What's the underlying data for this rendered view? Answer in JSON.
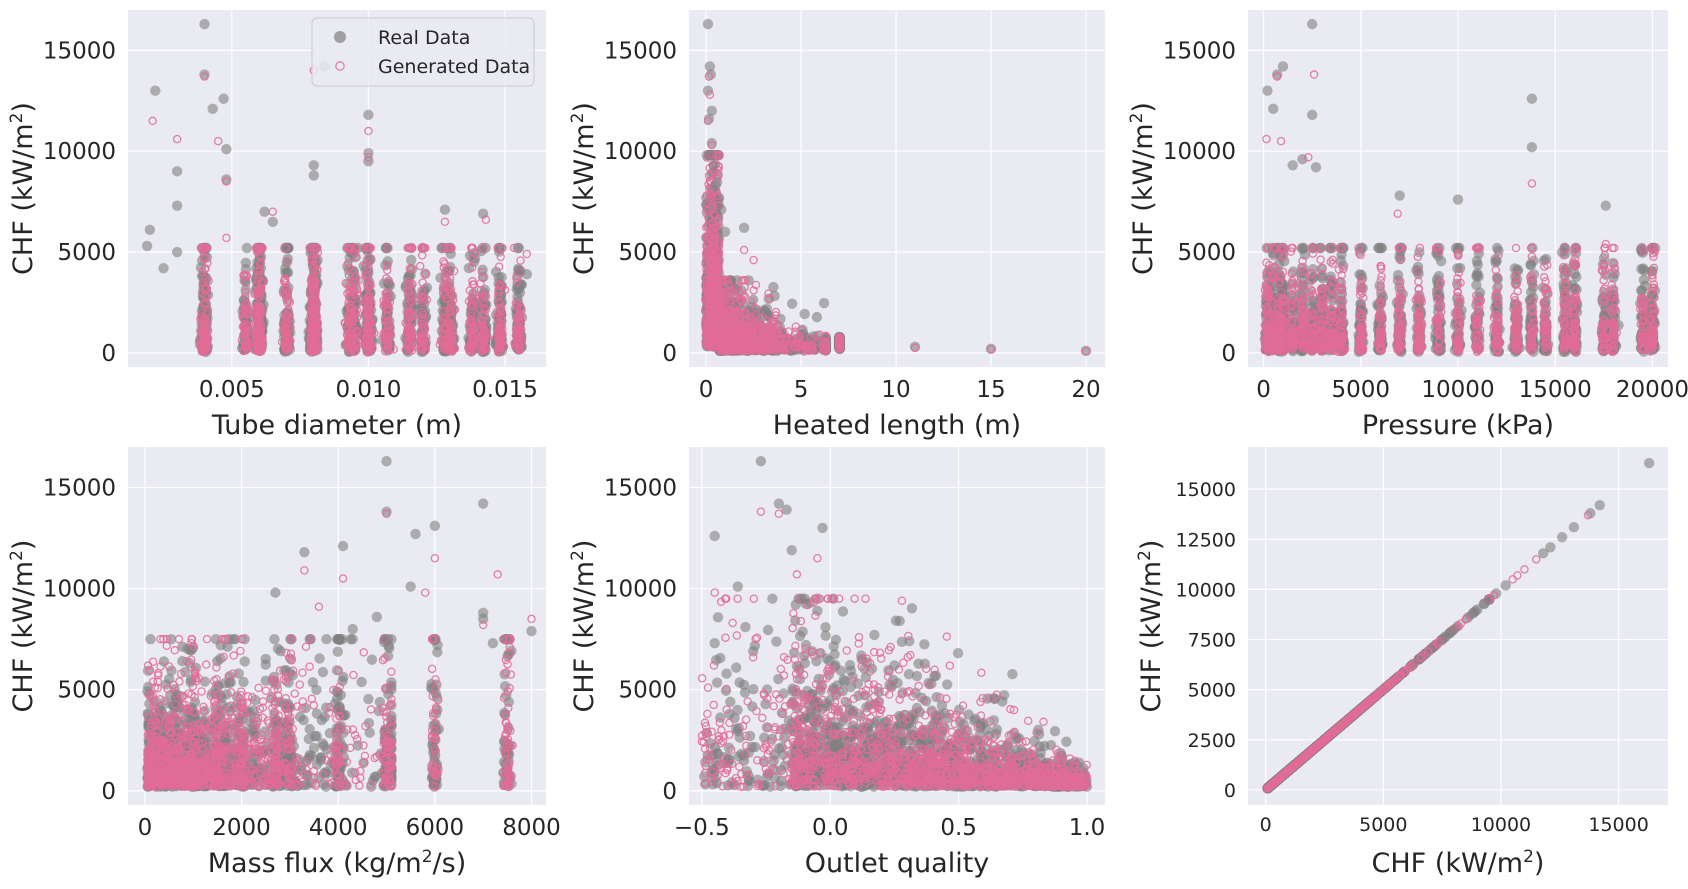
{
  "figure": {
    "style": "seaborn-darkgrid",
    "background": "#ffffff",
    "plot_background": "#eaeaf2",
    "grid_color": "#ffffff"
  },
  "legend": {
    "placement": "upper-right of first panel",
    "entries": [
      {
        "label": "Real Data",
        "marker": "filled-circle",
        "color": "#808080"
      },
      {
        "label": "Generated Data",
        "marker": "hollow-circle",
        "color": "#e87fa3"
      }
    ]
  },
  "colors": {
    "real": "#808080",
    "generated": "#e06c96"
  },
  "chart_data": [
    {
      "type": "scatter",
      "xlabel_parts": [
        {
          "t": "Tube diameter (m)"
        }
      ],
      "ylabel_parts": [
        {
          "t": "CHF (kW/m"
        },
        {
          "t": "2",
          "sup": true
        },
        {
          "t": ")"
        }
      ],
      "xlim": [
        0.0012,
        0.0165
      ],
      "ylim": [
        -700,
        17000
      ],
      "xticks": [
        0.005,
        0.01,
        0.015
      ],
      "xtick_labels": [
        "0.005",
        "0.010",
        "0.015"
      ],
      "yticks": [
        0,
        5000,
        10000,
        15000
      ],
      "ytick_labels": [
        "0",
        "5000",
        "10000",
        "15000"
      ],
      "legend": true,
      "generator": "diameter",
      "real_points": [
        [
          0.0019,
          5300
        ],
        [
          0.002,
          6100
        ],
        [
          0.0022,
          13000
        ],
        [
          0.0025,
          4200
        ],
        [
          0.003,
          7300
        ],
        [
          0.003,
          9000
        ],
        [
          0.003,
          5000
        ],
        [
          0.004,
          16300
        ],
        [
          0.004,
          13800
        ],
        [
          0.0043,
          12100
        ],
        [
          0.0047,
          12600
        ],
        [
          0.0048,
          10100
        ],
        [
          0.0048,
          8600
        ],
        [
          0.0062,
          7000
        ],
        [
          0.0065,
          6500
        ],
        [
          0.008,
          9300
        ],
        [
          0.008,
          8800
        ],
        [
          0.0084,
          14200
        ],
        [
          0.01,
          11800
        ],
        [
          0.01,
          9900
        ],
        [
          0.01,
          9500
        ],
        [
          0.0128,
          7100
        ],
        [
          0.0142,
          6900
        ],
        [
          0.0155,
          4100
        ],
        [
          0.0158,
          3900
        ]
      ],
      "gen_points": [
        [
          0.0021,
          11500
        ],
        [
          0.003,
          10600
        ],
        [
          0.004,
          13700
        ],
        [
          0.0045,
          10500
        ],
        [
          0.0048,
          8500
        ],
        [
          0.0048,
          5700
        ],
        [
          0.0065,
          7000
        ],
        [
          0.008,
          14000
        ],
        [
          0.01,
          11000
        ],
        [
          0.01,
          9700
        ],
        [
          0.0128,
          6500
        ],
        [
          0.0143,
          6600
        ],
        [
          0.0158,
          4900
        ]
      ]
    },
    {
      "type": "scatter",
      "xlabel_parts": [
        {
          "t": "Heated length (m)"
        }
      ],
      "ylabel_parts": [
        {
          "t": "CHF (kW/m"
        },
        {
          "t": "2",
          "sup": true
        },
        {
          "t": ")"
        }
      ],
      "xlim": [
        -0.9,
        21
      ],
      "ylim": [
        -700,
        17000
      ],
      "xticks": [
        0,
        5,
        10,
        15,
        20
      ],
      "xtick_labels": [
        "0",
        "5",
        "10",
        "15",
        "20"
      ],
      "yticks": [
        0,
        5000,
        10000,
        15000
      ],
      "ytick_labels": [
        "0",
        "5000",
        "10000",
        "15000"
      ],
      "generator": "length",
      "real_points": [
        [
          0.1,
          16300
        ],
        [
          0.2,
          14200
        ],
        [
          0.25,
          13800
        ],
        [
          0.1,
          13000
        ],
        [
          0.3,
          12000
        ],
        [
          0.15,
          11600
        ],
        [
          0.3,
          10400
        ],
        [
          0.2,
          9800
        ],
        [
          0.4,
          9300
        ],
        [
          2,
          6200
        ],
        [
          0.5,
          8300
        ],
        [
          0.8,
          7100
        ],
        [
          1,
          6000
        ],
        [
          11,
          300
        ],
        [
          15,
          200
        ],
        [
          20,
          100
        ]
      ],
      "gen_points": [
        [
          0.15,
          13700
        ],
        [
          0.2,
          12800
        ],
        [
          0.1,
          11500
        ],
        [
          0.3,
          10300
        ],
        [
          2,
          5100
        ],
        [
          2.5,
          4600
        ],
        [
          11,
          250
        ],
        [
          15,
          180
        ],
        [
          20,
          80
        ]
      ]
    },
    {
      "type": "scatter",
      "xlabel_parts": [
        {
          "t": "Pressure (kPa)"
        }
      ],
      "ylabel_parts": [
        {
          "t": "CHF (kW/m"
        },
        {
          "t": "2",
          "sup": true
        },
        {
          "t": ")"
        }
      ],
      "xlim": [
        -800,
        20800
      ],
      "ylim": [
        -700,
        17000
      ],
      "xticks": [
        0,
        5000,
        10000,
        15000,
        20000
      ],
      "xtick_labels": [
        "0",
        "5000",
        "10000",
        "15000",
        "20000"
      ],
      "yticks": [
        0,
        5000,
        10000,
        15000
      ],
      "ytick_labels": [
        "0",
        "5000",
        "10000",
        "15000"
      ],
      "generator": "pressure",
      "real_points": [
        [
          2500,
          16300
        ],
        [
          1000,
          14200
        ],
        [
          700,
          13800
        ],
        [
          200,
          13000
        ],
        [
          500,
          12100
        ],
        [
          2500,
          11800
        ],
        [
          13800,
          12600
        ],
        [
          2000,
          9600
        ],
        [
          1500,
          9300
        ],
        [
          13800,
          10200
        ],
        [
          17600,
          7300
        ],
        [
          7000,
          7800
        ],
        [
          10000,
          7600
        ],
        [
          2700,
          9200
        ]
      ],
      "gen_points": [
        [
          2600,
          13800
        ],
        [
          700,
          13700
        ],
        [
          150,
          10600
        ],
        [
          900,
          10500
        ],
        [
          13800,
          8400
        ],
        [
          2300,
          9700
        ],
        [
          6900,
          6900
        ],
        [
          17600,
          5400
        ]
      ]
    },
    {
      "type": "scatter",
      "xlabel_parts": [
        {
          "t": "Mass flux (kg/m"
        },
        {
          "t": "2",
          "sup": true
        },
        {
          "t": "/s)"
        }
      ],
      "ylabel_parts": [
        {
          "t": "CHF (kW/m"
        },
        {
          "t": "2",
          "sup": true
        },
        {
          "t": ")"
        }
      ],
      "xlim": [
        -350,
        8300
      ],
      "ylim": [
        -700,
        17000
      ],
      "xticks": [
        0,
        2000,
        4000,
        6000,
        8000
      ],
      "xtick_labels": [
        "0",
        "2000",
        "4000",
        "6000",
        "8000"
      ],
      "yticks": [
        0,
        5000,
        10000,
        15000
      ],
      "ytick_labels": [
        "0",
        "5000",
        "10000",
        "15000"
      ],
      "generator": "massflux",
      "real_points": [
        [
          5000,
          16300
        ],
        [
          7000,
          14200
        ],
        [
          5000,
          13800
        ],
        [
          6000,
          13100
        ],
        [
          5600,
          12700
        ],
        [
          4100,
          12100
        ],
        [
          3300,
          11800
        ],
        [
          5500,
          10100
        ],
        [
          2700,
          9800
        ],
        [
          7000,
          8800
        ],
        [
          7000,
          8500
        ],
        [
          8000,
          7900
        ],
        [
          7200,
          7300
        ],
        [
          4300,
          8000
        ],
        [
          4800,
          8600
        ]
      ],
      "gen_points": [
        [
          5000,
          13700
        ],
        [
          6000,
          11500
        ],
        [
          3300,
          10900
        ],
        [
          7300,
          10700
        ],
        [
          4100,
          10500
        ],
        [
          5800,
          9800
        ],
        [
          8000,
          8500
        ],
        [
          7000,
          8200
        ],
        [
          3600,
          9100
        ]
      ]
    },
    {
      "type": "scatter",
      "xlabel_parts": [
        {
          "t": "Outlet quality"
        }
      ],
      "ylabel_parts": [
        {
          "t": "CHF (kW/m"
        },
        {
          "t": "2",
          "sup": true
        },
        {
          "t": ")"
        }
      ],
      "xlim": [
        -0.55,
        1.07
      ],
      "ylim": [
        -700,
        17000
      ],
      "xticks": [
        -0.5,
        0.0,
        0.5,
        1.0
      ],
      "xtick_labels": [
        "−0.5",
        "0.0",
        "0.5",
        "1.0"
      ],
      "yticks": [
        0,
        5000,
        10000,
        15000
      ],
      "ytick_labels": [
        "0",
        "5000",
        "10000",
        "15000"
      ],
      "generator": "quality",
      "real_points": [
        [
          -0.27,
          16300
        ],
        [
          -0.2,
          14200
        ],
        [
          -0.17,
          13900
        ],
        [
          -0.45,
          12600
        ],
        [
          -0.03,
          13000
        ],
        [
          -0.15,
          11900
        ],
        [
          -0.36,
          10100
        ],
        [
          -0.45,
          7300
        ],
        [
          -0.3,
          6900
        ],
        [
          0.25,
          6200
        ],
        [
          -0.1,
          9500
        ],
        [
          -0.05,
          8900
        ]
      ],
      "gen_points": [
        [
          -0.27,
          13800
        ],
        [
          -0.2,
          13700
        ],
        [
          -0.05,
          11500
        ],
        [
          -0.45,
          9800
        ],
        [
          -0.38,
          8300
        ],
        [
          -0.3,
          6600
        ],
        [
          -0.13,
          10700
        ],
        [
          0.23,
          5900
        ]
      ]
    },
    {
      "type": "scatter",
      "xlabel_parts": [
        {
          "t": "CHF (kW/m"
        },
        {
          "t": "2",
          "sup": true
        },
        {
          "t": ")"
        }
      ],
      "ylabel_parts": [
        {
          "t": "CHF (kW/m"
        },
        {
          "t": "2",
          "sup": true
        },
        {
          "t": ")"
        }
      ],
      "xlim": [
        -750,
        17100
      ],
      "ylim": [
        -750,
        17100
      ],
      "xticks": [
        0,
        5000,
        10000,
        15000
      ],
      "xtick_labels": [
        "0",
        "5000",
        "10000",
        "15000"
      ],
      "yticks": [
        0,
        2500,
        5000,
        7500,
        10000,
        12500,
        15000
      ],
      "ytick_labels": [
        "0",
        "2500",
        "5000",
        "7500",
        "10000",
        "12500",
        "15000"
      ],
      "small_ticks": true,
      "generator": "identity",
      "real_points": [
        [
          16300,
          16300
        ],
        [
          14200,
          14200
        ],
        [
          13800,
          13800
        ],
        [
          13100,
          13100
        ],
        [
          12600,
          12600
        ],
        [
          12100,
          12100
        ],
        [
          11800,
          11800
        ],
        [
          10200,
          10200
        ],
        [
          9800,
          9800
        ],
        [
          9300,
          9300
        ],
        [
          9000,
          9000
        ],
        [
          8800,
          8800
        ],
        [
          8600,
          8600
        ],
        [
          8000,
          8000
        ],
        [
          7500,
          7500
        ],
        [
          7000,
          7000
        ],
        [
          6500,
          6500
        ]
      ],
      "gen_points": [
        [
          13700,
          13700
        ],
        [
          11500,
          11500
        ],
        [
          11000,
          11000
        ],
        [
          10700,
          10700
        ],
        [
          10500,
          10500
        ],
        [
          9700,
          9700
        ],
        [
          8500,
          8500
        ],
        [
          8300,
          8300
        ],
        [
          7400,
          7400
        ],
        [
          6900,
          6900
        ],
        [
          6600,
          6600
        ]
      ]
    }
  ]
}
